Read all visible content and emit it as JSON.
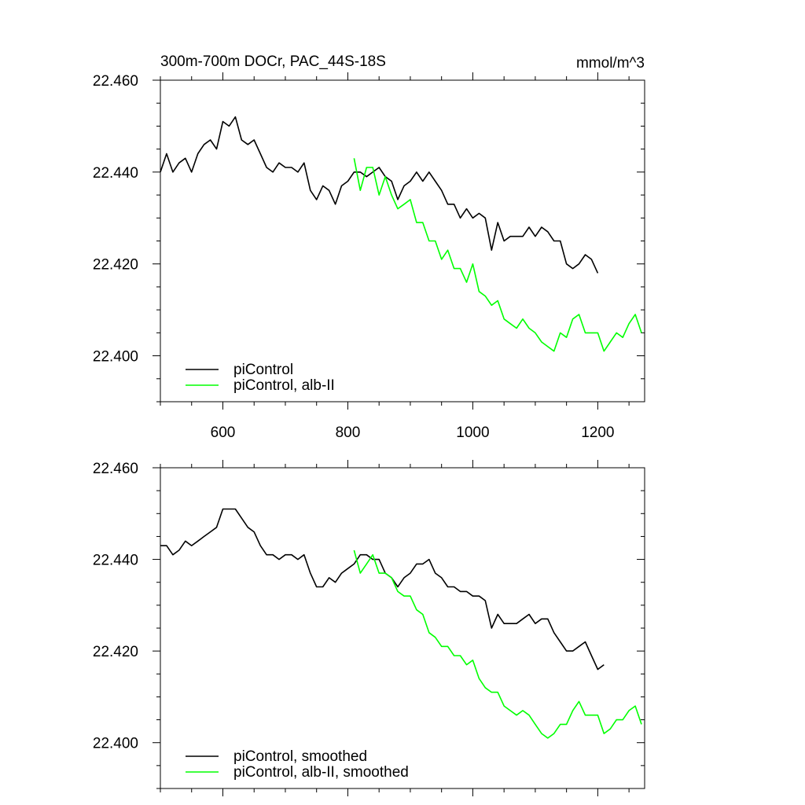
{
  "figure": {
    "title": "300m-700m DOCr, PAC_44S-18S",
    "units": "mmol/m^3"
  },
  "colors": {
    "piControl": "#000000",
    "alb_II": "#00ff00",
    "axes": "#000000",
    "background": "#ffffff"
  },
  "chart_data": [
    {
      "type": "line",
      "title": "300m-700m DOCr, PAC_44S-18S",
      "units_label": "mmol/m^3",
      "xlim": [
        500,
        1275
      ],
      "ylim": [
        22.39,
        22.46
      ],
      "x_ticks": [
        600,
        800,
        1000,
        1200
      ],
      "x_tick_labels": [
        "600",
        "800",
        "1000",
        "1200"
      ],
      "y_ticks": [
        22.4,
        22.42,
        22.44,
        22.46
      ],
      "y_tick_labels": [
        "22.400",
        "22.420",
        "22.440",
        "22.460"
      ],
      "grid": false,
      "legend_position": "bottom-left",
      "series": [
        {
          "name": "piControl",
          "color": "#000000",
          "x_start": 500,
          "x_step": 10,
          "values": [
            22.44,
            22.444,
            22.44,
            22.442,
            22.443,
            22.44,
            22.444,
            22.446,
            22.447,
            22.445,
            22.451,
            22.45,
            22.452,
            22.447,
            22.446,
            22.447,
            22.444,
            22.441,
            22.44,
            22.442,
            22.441,
            22.441,
            22.44,
            22.442,
            22.436,
            22.434,
            22.437,
            22.436,
            22.433,
            22.437,
            22.438,
            22.44,
            22.44,
            22.439,
            22.44,
            22.441,
            22.439,
            22.438,
            22.434,
            22.437,
            22.438,
            22.44,
            22.438,
            22.44,
            22.438,
            22.436,
            22.433,
            22.433,
            22.43,
            22.432,
            22.43,
            22.431,
            22.43,
            22.423,
            22.429,
            22.425,
            22.426,
            22.426,
            22.426,
            22.428,
            22.426,
            22.428,
            22.427,
            22.425,
            22.425,
            22.42,
            22.419,
            22.42,
            22.422,
            22.421,
            22.418
          ]
        },
        {
          "name": "piControl, alb-II",
          "color": "#00ff00",
          "x_start": 810,
          "x_step": 10,
          "values": [
            22.443,
            22.436,
            22.441,
            22.441,
            22.435,
            22.439,
            22.435,
            22.432,
            22.433,
            22.434,
            22.429,
            22.429,
            22.425,
            22.425,
            22.421,
            22.423,
            22.419,
            22.419,
            22.416,
            22.42,
            22.414,
            22.413,
            22.411,
            22.412,
            22.408,
            22.407,
            22.406,
            22.408,
            22.406,
            22.405,
            22.403,
            22.402,
            22.401,
            22.405,
            22.404,
            22.408,
            22.409,
            22.405,
            22.405,
            22.405,
            22.401,
            22.403,
            22.405,
            22.404,
            22.407,
            22.409,
            22.405
          ]
        }
      ]
    },
    {
      "type": "line",
      "title": "",
      "xlim": [
        500,
        1275
      ],
      "ylim": [
        22.39,
        22.46
      ],
      "x_ticks": [
        600,
        800,
        1000,
        1200
      ],
      "x_tick_labels": [],
      "y_ticks": [
        22.4,
        22.42,
        22.44,
        22.46
      ],
      "y_tick_labels": [
        "22.400",
        "22.420",
        "22.440",
        "22.460"
      ],
      "grid": false,
      "legend_position": "bottom-left",
      "series": [
        {
          "name": "piControl, smoothed",
          "color": "#000000",
          "x_start": 500,
          "x_step": 10,
          "values": [
            22.443,
            22.443,
            22.441,
            22.442,
            22.444,
            22.443,
            22.444,
            22.445,
            22.446,
            22.447,
            22.451,
            22.451,
            22.451,
            22.449,
            22.447,
            22.446,
            22.443,
            22.441,
            22.441,
            22.44,
            22.441,
            22.441,
            22.44,
            22.441,
            22.437,
            22.434,
            22.434,
            22.436,
            22.435,
            22.437,
            22.438,
            22.439,
            22.441,
            22.441,
            22.44,
            22.44,
            22.437,
            22.436,
            22.434,
            22.436,
            22.437,
            22.439,
            22.439,
            22.44,
            22.437,
            22.436,
            22.434,
            22.434,
            22.433,
            22.433,
            22.432,
            22.432,
            22.431,
            22.425,
            22.428,
            22.426,
            22.426,
            22.426,
            22.427,
            22.428,
            22.426,
            22.427,
            22.427,
            22.424,
            22.422,
            22.42,
            22.42,
            22.421,
            22.422,
            22.419,
            22.416,
            22.417
          ]
        },
        {
          "name": "piControl, alb-II, smoothed",
          "color": "#00ff00",
          "x_start": 810,
          "x_step": 10,
          "values": [
            22.442,
            22.437,
            22.439,
            22.441,
            22.437,
            22.437,
            22.436,
            22.433,
            22.432,
            22.432,
            22.429,
            22.428,
            22.424,
            22.423,
            22.421,
            22.421,
            22.419,
            22.419,
            22.417,
            22.418,
            22.414,
            22.412,
            22.411,
            22.411,
            22.408,
            22.407,
            22.406,
            22.407,
            22.406,
            22.404,
            22.402,
            22.401,
            22.402,
            22.404,
            22.404,
            22.407,
            22.409,
            22.406,
            22.406,
            22.406,
            22.402,
            22.403,
            22.405,
            22.405,
            22.407,
            22.408,
            22.404
          ]
        }
      ]
    }
  ]
}
